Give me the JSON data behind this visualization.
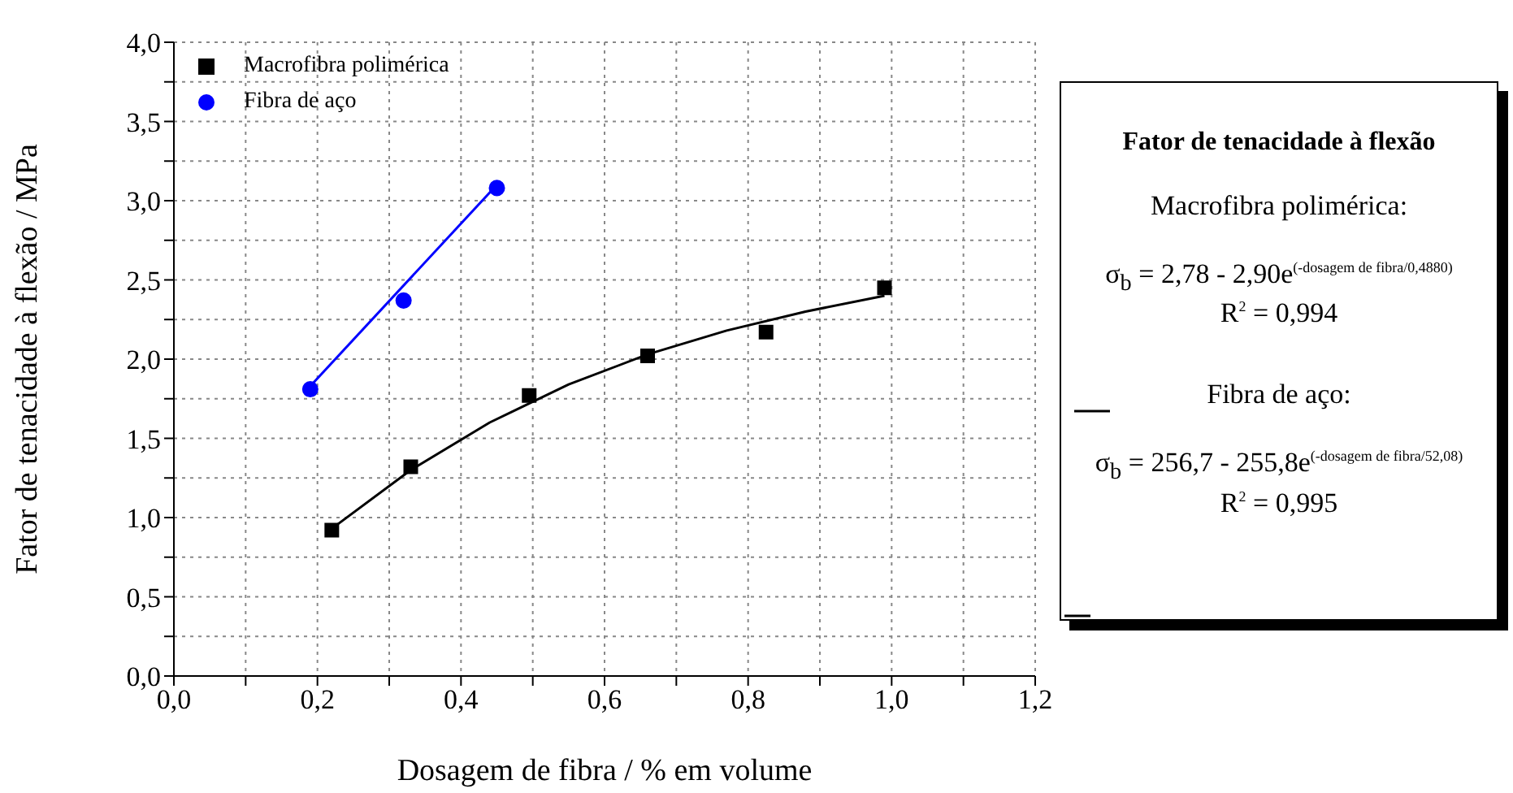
{
  "chart_data": {
    "type": "scatter",
    "xlabel": "Dosagem de fibra / % em volume",
    "ylabel": "Fator de tenacidade à flexão / MPa",
    "series": [
      {
        "name": "Macrofibra polimérica",
        "color": "#000000",
        "marker": "square",
        "x": [
          0.22,
          0.33,
          0.495,
          0.66,
          0.825,
          0.99
        ],
        "values": [
          0.92,
          1.32,
          1.77,
          2.02,
          2.17,
          2.45
        ]
      },
      {
        "name": "Fibra de aço",
        "color": "#0000ff",
        "marker": "circle",
        "x": [
          0.19,
          0.32,
          0.45
        ],
        "values": [
          1.81,
          2.37,
          3.08
        ]
      },
      {
        "type": "line",
        "color": "#000000",
        "marker": "none",
        "x": [
          0.22,
          0.33,
          0.44,
          0.55,
          0.66,
          0.77,
          0.88,
          0.99
        ],
        "values": [
          0.93,
          1.3,
          1.6,
          1.84,
          2.03,
          2.18,
          2.3,
          2.4
        ]
      },
      {
        "type": "line",
        "color": "#0000ff",
        "marker": "none",
        "x": [
          0.19,
          0.45
        ],
        "values": [
          1.83,
          3.1
        ]
      }
    ],
    "xlim": [
      0,
      1.2
    ],
    "xticks": [
      {
        "value": 0,
        "label": "0,0"
      },
      {
        "value": 0.1,
        "label": null
      },
      {
        "value": 0.2,
        "label": "0,2"
      },
      {
        "value": 0.3,
        "label": null
      },
      {
        "value": 0.4,
        "label": "0,4"
      },
      {
        "value": 0.5,
        "label": null
      },
      {
        "value": 0.6,
        "label": "0,6"
      },
      {
        "value": 0.7,
        "label": null
      },
      {
        "value": 0.8,
        "label": "0,8"
      },
      {
        "value": 0.9,
        "label": null
      },
      {
        "value": 1.0,
        "label": "1,0"
      },
      {
        "value": 1.1,
        "label": null
      },
      {
        "value": 1.2,
        "label": "1,2"
      }
    ],
    "ylim": [
      0,
      4
    ],
    "yticks": [
      {
        "value": 0,
        "label": "0,0"
      },
      {
        "value": 0.25,
        "label": null
      },
      {
        "value": 0.5,
        "label": "0,5"
      },
      {
        "value": 0.75,
        "label": null
      },
      {
        "value": 1.0,
        "label": "1,0"
      },
      {
        "value": 1.25,
        "label": null
      },
      {
        "value": 1.5,
        "label": "1,5"
      },
      {
        "value": 1.75,
        "label": null
      },
      {
        "value": 2.0,
        "label": "2,0"
      },
      {
        "value": 2.25,
        "label": null
      },
      {
        "value": 2.5,
        "label": "2,5"
      },
      {
        "value": 2.75,
        "label": null
      },
      {
        "value": 3.0,
        "label": "3,0"
      },
      {
        "value": 3.25,
        "label": null
      },
      {
        "value": 3.5,
        "label": "3,5"
      },
      {
        "value": 3.75,
        "label": null
      },
      {
        "value": 4.0,
        "label": "4,0"
      }
    ],
    "grid": true,
    "legend": "top left",
    "annotations": [
      "Fator de tenacidade à flexão",
      "Macrofibra polimérica:",
      "σ$_{b}$ = 2,78 - 2,90e$^{(-dosagem de fibra/0,4880)}$",
      "R$^{2}$ = 0,994",
      "Fibra de aço:",
      "σ$_{b}$ = 256,7 - 255,8e$^{(-dosagem de fibra/52,08)}$",
      "R$^{2}$ = 0,995"
    ]
  }
}
